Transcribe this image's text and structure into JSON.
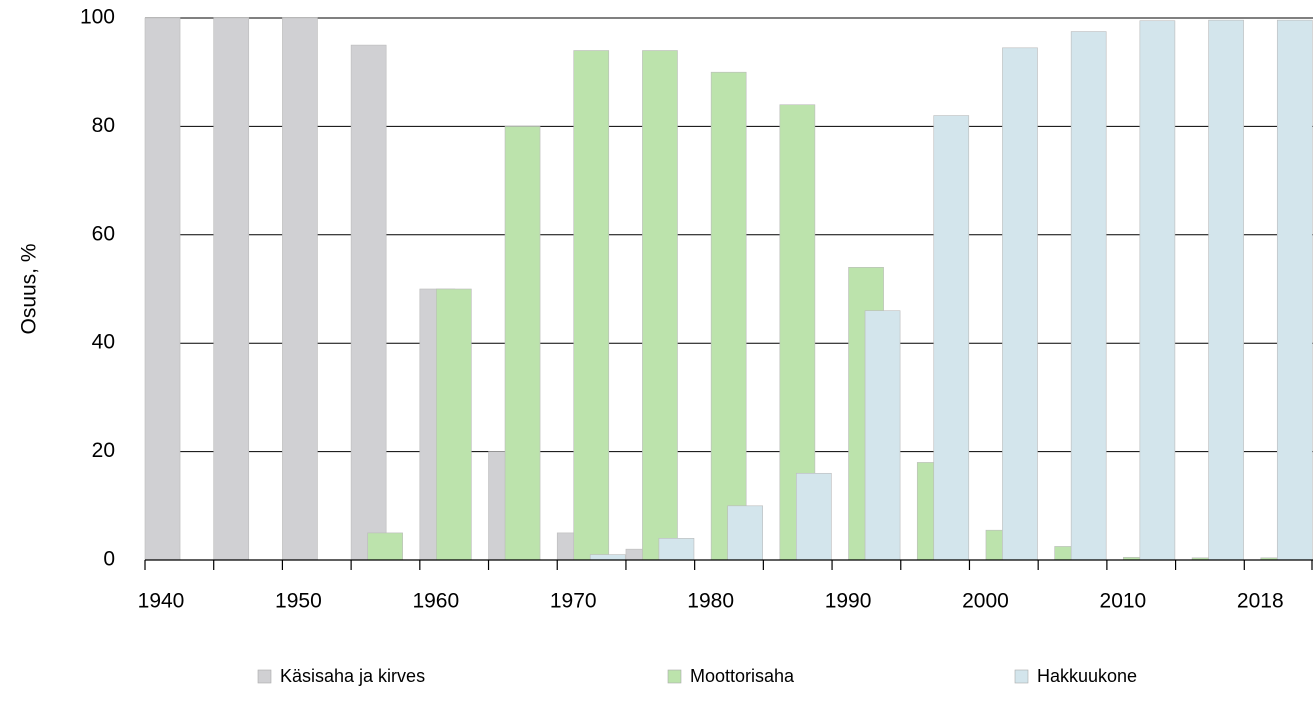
{
  "chart_data": {
    "type": "bar",
    "y_label": "Osuus, %",
    "categories": [
      "1940",
      null,
      "1950",
      null,
      "1960",
      null,
      "1970",
      null,
      "1980",
      null,
      "1990",
      null,
      "2000",
      null,
      "2010",
      null,
      "2018"
    ],
    "series": [
      {
        "name": "Käsisaha ja kirves",
        "color": "#d0d0d3",
        "values": [
          100,
          100,
          100,
          95,
          50,
          20,
          5,
          2,
          0,
          0,
          0,
          0,
          0,
          0,
          0,
          0,
          0
        ]
      },
      {
        "name": "Moottorisaha",
        "color": "#bce3ac",
        "values": [
          0,
          0,
          0,
          5,
          50,
          80,
          94,
          94,
          90,
          84,
          54,
          18,
          5.5,
          2.5,
          0.5,
          0.4,
          0.4
        ]
      },
      {
        "name": "Hakkuukone",
        "color": "#d3e5ec",
        "values": [
          0,
          0,
          0,
          0,
          0,
          0,
          1,
          4,
          10,
          16,
          46,
          82,
          94.5,
          97.5,
          99.5,
          99.6,
          99.6
        ]
      }
    ],
    "ylim": [
      0,
      100
    ],
    "yticks": [
      0,
      20,
      40,
      60,
      80,
      100
    ],
    "grid": true
  }
}
